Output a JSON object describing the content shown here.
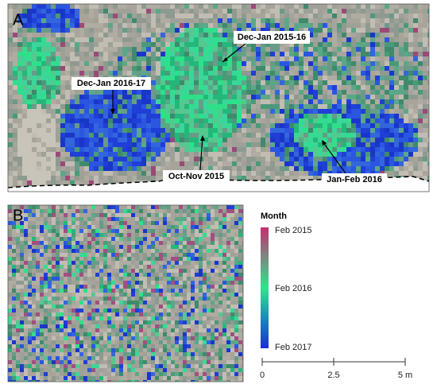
{
  "panel_a": {
    "label": "A",
    "annotations": [
      "Dec-Jan 2015-16",
      "Dec-Jan 2016-17",
      "Oct-Nov 2015",
      "Jan-Feb 2016"
    ]
  },
  "panel_b": {
    "label": "B"
  },
  "legend": {
    "title": "Month",
    "labels": [
      "Feb 2015",
      "Feb 2016",
      "Feb 2017"
    ]
  },
  "scale_bar": {
    "labels": [
      "0",
      "2.5",
      "5 m"
    ]
  }
}
